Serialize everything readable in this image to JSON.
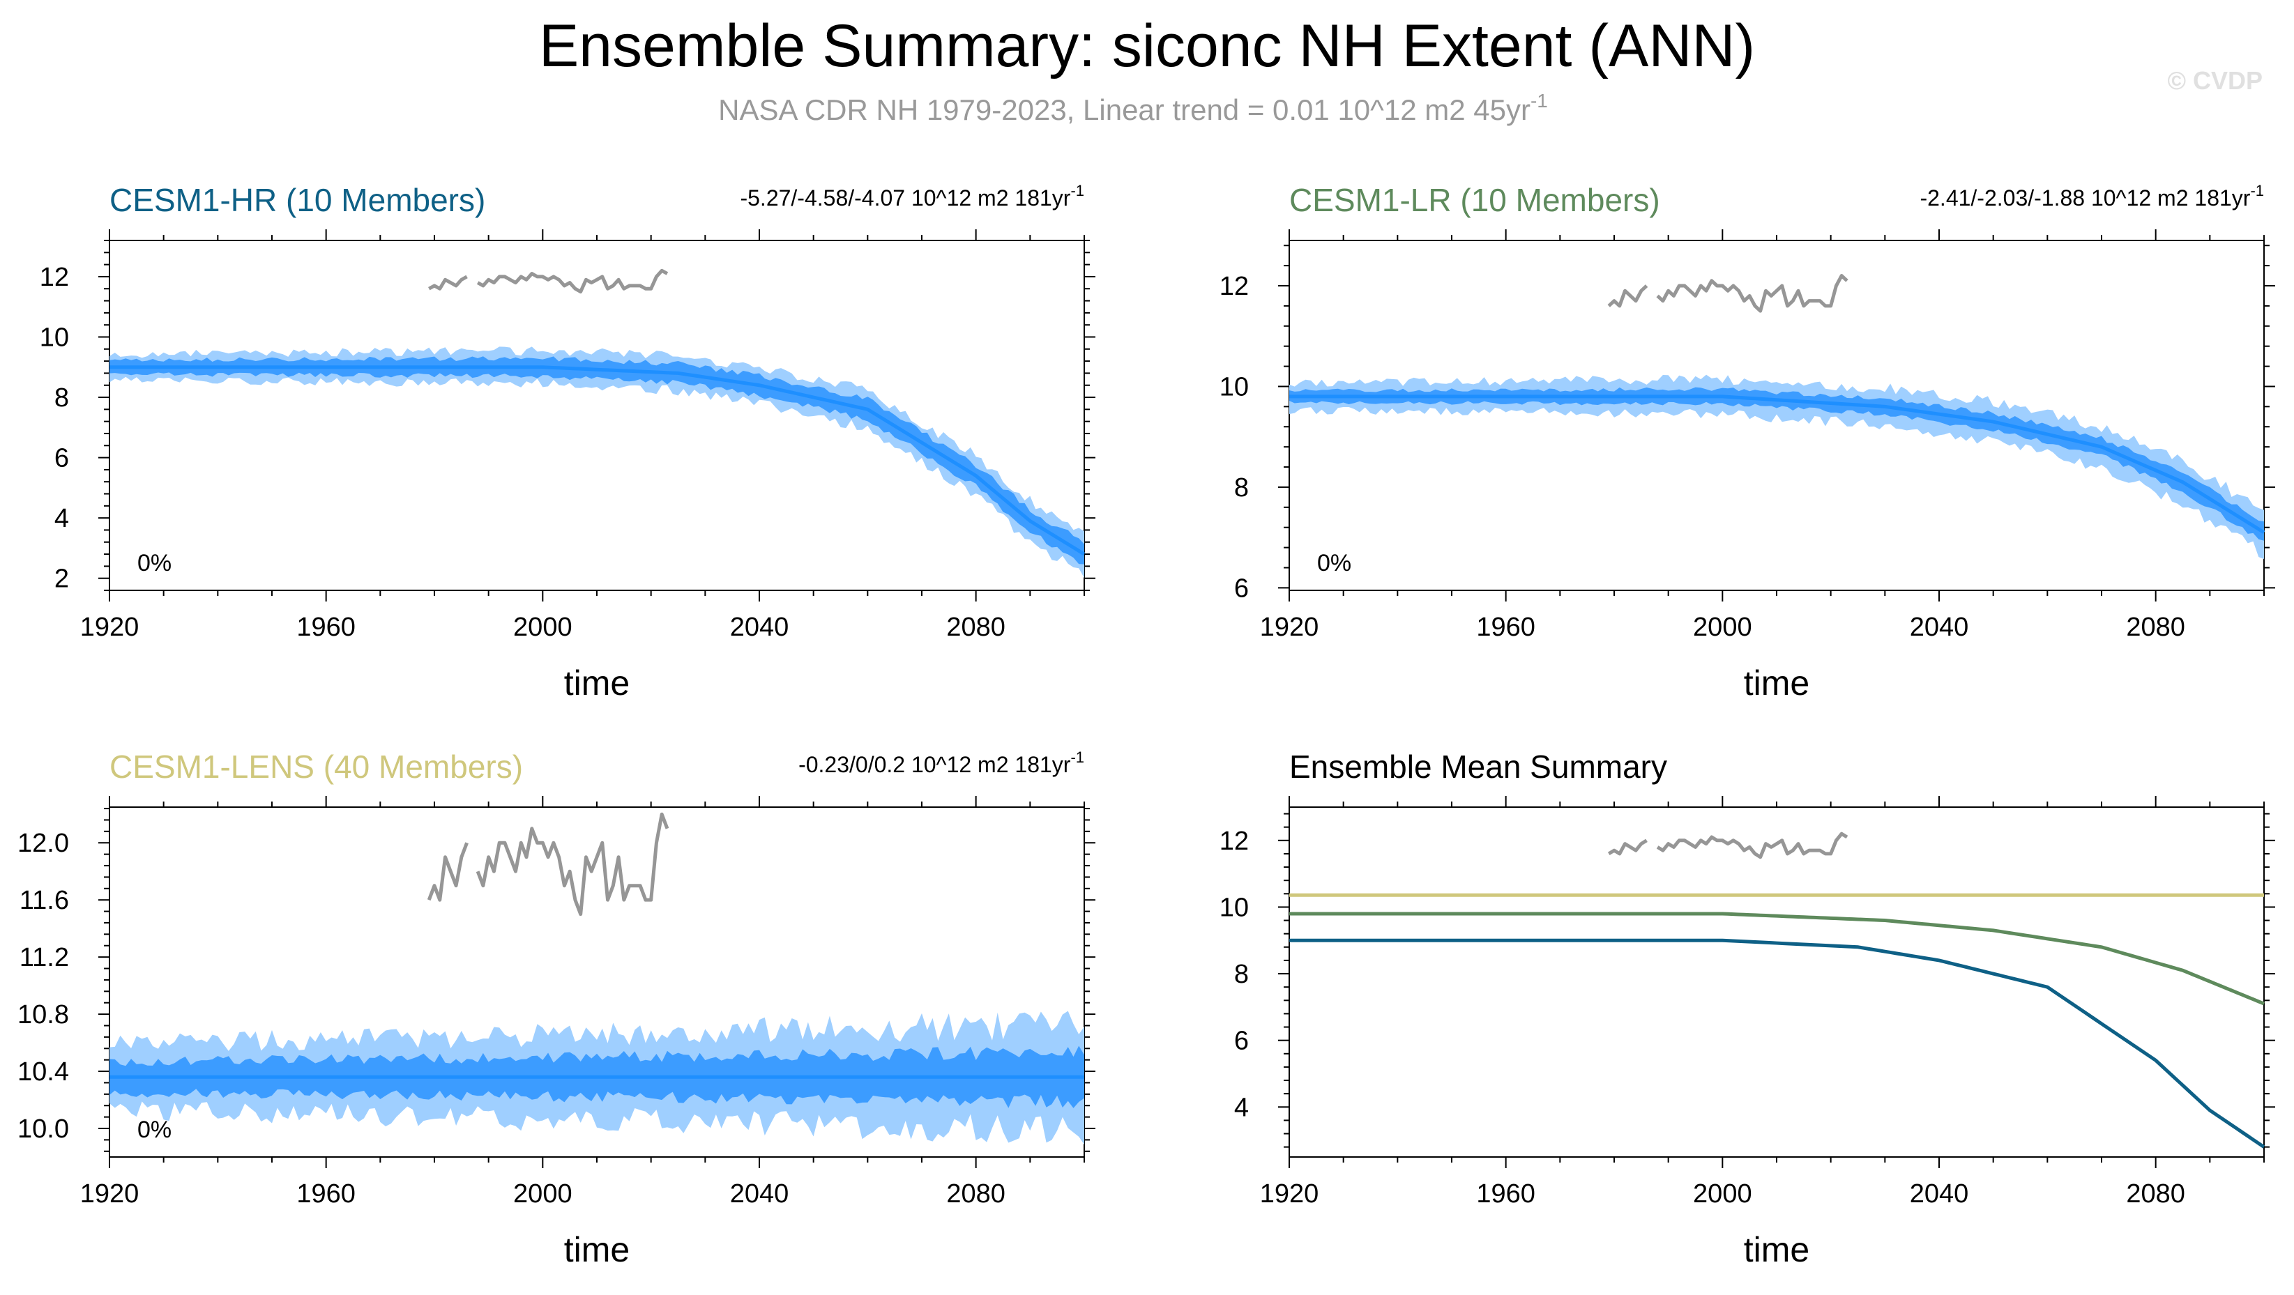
{
  "figure": {
    "title": "Ensemble Summary: siconc NH Extent (ANN)",
    "subtitle": "NASA CDR NH 1979-2023, Linear trend = 0.01 10^12 m2 45yr",
    "subtitle_superscript": "-1",
    "watermark": "© CVDP"
  },
  "colors": {
    "hr": "#0e6086",
    "lr": "#5e8a5c",
    "lens": "#cfc77c",
    "obs": "#969696",
    "band_outer": "#9fcfff",
    "band_inner": "#3c9cff",
    "mean_line": "#1e8fff",
    "axis": "#000000"
  },
  "chart_data": [
    {
      "type": "line",
      "name": "CESM1-HR (10 Members)",
      "title": "CESM1-HR (10 Members)",
      "trend_label": "-5.27/-4.58/-4.07 10^12 m2 181yr",
      "trend_superscript": "-1",
      "percent_label": "0%",
      "xlabel": "time",
      "xlim": [
        1920,
        2100
      ],
      "ylim": [
        1.6,
        13.2
      ],
      "xticks": [
        1920,
        1960,
        2000,
        2040,
        2080
      ],
      "xtick_labels": [
        "1920",
        "1960",
        "2000",
        "2040",
        "2080"
      ],
      "yticks": [
        2,
        4,
        6,
        8,
        10,
        12
      ],
      "ytick_labels": [
        "2",
        "4",
        "6",
        "8",
        "10",
        "12"
      ],
      "mean_keypoints": [
        [
          1920,
          9.0
        ],
        [
          1960,
          9.0
        ],
        [
          2000,
          9.0
        ],
        [
          2025,
          8.8
        ],
        [
          2040,
          8.4
        ],
        [
          2060,
          7.6
        ],
        [
          2080,
          5.4
        ],
        [
          2090,
          3.9
        ],
        [
          2100,
          2.8
        ]
      ],
      "inner_spread": 0.3,
      "outer_spread": 0.55,
      "obs_years": [
        1979,
        1980,
        1981,
        1982,
        1983,
        1984,
        1985,
        1986,
        1987,
        1988,
        1989,
        1990,
        1991,
        1992,
        1993,
        1994,
        1995,
        1996,
        1997,
        1998,
        1999,
        2000,
        2001,
        2002,
        2003,
        2004,
        2005,
        2006,
        2007,
        2008,
        2009,
        2010,
        2011,
        2012,
        2013,
        2014,
        2015,
        2016,
        2017,
        2018,
        2019,
        2020,
        2021,
        2022,
        2023
      ],
      "obs_values": [
        11.6,
        11.7,
        11.6,
        11.9,
        11.8,
        11.7,
        11.9,
        12.0,
        null,
        11.8,
        11.7,
        11.9,
        11.8,
        12.0,
        12.0,
        11.9,
        11.8,
        12.0,
        11.9,
        12.1,
        12.0,
        12.0,
        11.9,
        12.0,
        11.9,
        11.7,
        11.8,
        11.6,
        11.5,
        11.9,
        11.8,
        11.9,
        12.0,
        11.6,
        11.7,
        11.9,
        11.6,
        11.7,
        11.7,
        11.7,
        11.6,
        11.6,
        12.0,
        12.2,
        12.1
      ]
    },
    {
      "type": "line",
      "name": "CESM1-LR (10 Members)",
      "title": "CESM1-LR (10 Members)",
      "trend_label": "-2.41/-2.03/-1.88 10^12 m2 181yr",
      "trend_superscript": "-1",
      "percent_label": "0%",
      "xlabel": "time",
      "xlim": [
        1920,
        2100
      ],
      "ylim": [
        5.95,
        12.9
      ],
      "xticks": [
        1920,
        1960,
        2000,
        2040,
        2080
      ],
      "xtick_labels": [
        "1920",
        "1960",
        "2000",
        "2040",
        "2080"
      ],
      "yticks": [
        6,
        8,
        10,
        12
      ],
      "ytick_labels": [
        "6",
        "8",
        "10",
        "12"
      ],
      "mean_keypoints": [
        [
          1920,
          9.8
        ],
        [
          2000,
          9.8
        ],
        [
          2030,
          9.6
        ],
        [
          2050,
          9.3
        ],
        [
          2070,
          8.8
        ],
        [
          2085,
          8.1
        ],
        [
          2100,
          7.1
        ]
      ],
      "inner_spread": 0.15,
      "outer_spread": 0.35,
      "obs_years": [
        1979,
        1980,
        1981,
        1982,
        1983,
        1984,
        1985,
        1986,
        1987,
        1988,
        1989,
        1990,
        1991,
        1992,
        1993,
        1994,
        1995,
        1996,
        1997,
        1998,
        1999,
        2000,
        2001,
        2002,
        2003,
        2004,
        2005,
        2006,
        2007,
        2008,
        2009,
        2010,
        2011,
        2012,
        2013,
        2014,
        2015,
        2016,
        2017,
        2018,
        2019,
        2020,
        2021,
        2022,
        2023
      ],
      "obs_values": [
        11.6,
        11.7,
        11.6,
        11.9,
        11.8,
        11.7,
        11.9,
        12.0,
        null,
        11.8,
        11.7,
        11.9,
        11.8,
        12.0,
        12.0,
        11.9,
        11.8,
        12.0,
        11.9,
        12.1,
        12.0,
        12.0,
        11.9,
        12.0,
        11.9,
        11.7,
        11.8,
        11.6,
        11.5,
        11.9,
        11.8,
        11.9,
        12.0,
        11.6,
        11.7,
        11.9,
        11.6,
        11.7,
        11.7,
        11.7,
        11.6,
        11.6,
        12.0,
        12.2,
        12.1
      ]
    },
    {
      "type": "line",
      "name": "CESM1-LENS (40 Members)",
      "title": "CESM1-LENS (40 Members)",
      "trend_label": "-0.23/0/0.2 10^12 m2 181yr",
      "trend_superscript": "-1",
      "percent_label": "0%",
      "xlabel": "time",
      "xlim": [
        1920,
        2100
      ],
      "ylim": [
        9.8,
        12.25
      ],
      "xticks": [
        1920,
        1960,
        2000,
        2040,
        2080
      ],
      "xtick_labels": [
        "1920",
        "1960",
        "2000",
        "2040",
        "2080"
      ],
      "yticks": [
        10.0,
        10.4,
        10.8,
        11.2,
        11.6,
        12.0
      ],
      "ytick_labels": [
        "10.0",
        "10.4",
        "10.8",
        "11.2",
        "11.6",
        "12.0"
      ],
      "mean_keypoints": [
        [
          1920,
          10.36
        ],
        [
          2100,
          10.36
        ]
      ],
      "inner_spread": 0.14,
      "outer_spread": 0.3,
      "obs_years": [
        1979,
        1980,
        1981,
        1982,
        1983,
        1984,
        1985,
        1986,
        1987,
        1988,
        1989,
        1990,
        1991,
        1992,
        1993,
        1994,
        1995,
        1996,
        1997,
        1998,
        1999,
        2000,
        2001,
        2002,
        2003,
        2004,
        2005,
        2006,
        2007,
        2008,
        2009,
        2010,
        2011,
        2012,
        2013,
        2014,
        2015,
        2016,
        2017,
        2018,
        2019,
        2020,
        2021,
        2022,
        2023
      ],
      "obs_values": [
        11.6,
        11.7,
        11.6,
        11.9,
        11.8,
        11.7,
        11.9,
        12.0,
        null,
        11.8,
        11.7,
        11.9,
        11.8,
        12.0,
        12.0,
        11.9,
        11.8,
        12.0,
        11.9,
        12.1,
        12.0,
        12.0,
        11.9,
        12.0,
        11.9,
        11.7,
        11.8,
        11.6,
        11.5,
        11.9,
        11.8,
        11.9,
        12.0,
        11.6,
        11.7,
        11.9,
        11.6,
        11.7,
        11.7,
        11.7,
        11.6,
        11.6,
        12.0,
        12.2,
        12.1
      ]
    },
    {
      "type": "line",
      "name": "Ensemble Mean Summary",
      "title": "Ensemble Mean Summary",
      "xlabel": "time",
      "xlim": [
        1920,
        2100
      ],
      "ylim": [
        2.5,
        13.0
      ],
      "xticks": [
        1920,
        1960,
        2000,
        2040,
        2080
      ],
      "xtick_labels": [
        "1920",
        "1960",
        "2000",
        "2040",
        "2080"
      ],
      "yticks": [
        4,
        6,
        8,
        10,
        12
      ],
      "ytick_labels": [
        "4",
        "6",
        "8",
        "10",
        "12"
      ],
      "series": [
        {
          "name": "CESM1-LENS",
          "color_key": "lens",
          "keypoints": [
            [
              1920,
              10.36
            ],
            [
              2100,
              10.36
            ]
          ]
        },
        {
          "name": "CESM1-LR",
          "color_key": "lr",
          "keypoints": [
            [
              1920,
              9.8
            ],
            [
              2000,
              9.8
            ],
            [
              2030,
              9.6
            ],
            [
              2050,
              9.3
            ],
            [
              2070,
              8.8
            ],
            [
              2085,
              8.1
            ],
            [
              2100,
              7.1
            ]
          ]
        },
        {
          "name": "CESM1-HR",
          "color_key": "hr",
          "keypoints": [
            [
              1920,
              9.0
            ],
            [
              1960,
              9.0
            ],
            [
              2000,
              9.0
            ],
            [
              2025,
              8.8
            ],
            [
              2040,
              8.4
            ],
            [
              2060,
              7.6
            ],
            [
              2080,
              5.4
            ],
            [
              2090,
              3.9
            ],
            [
              2100,
              2.8
            ]
          ]
        }
      ],
      "obs_years": [
        1979,
        1980,
        1981,
        1982,
        1983,
        1984,
        1985,
        1986,
        1987,
        1988,
        1989,
        1990,
        1991,
        1992,
        1993,
        1994,
        1995,
        1996,
        1997,
        1998,
        1999,
        2000,
        2001,
        2002,
        2003,
        2004,
        2005,
        2006,
        2007,
        2008,
        2009,
        2010,
        2011,
        2012,
        2013,
        2014,
        2015,
        2016,
        2017,
        2018,
        2019,
        2020,
        2021,
        2022,
        2023
      ],
      "obs_values": [
        11.6,
        11.7,
        11.6,
        11.9,
        11.8,
        11.7,
        11.9,
        12.0,
        null,
        11.8,
        11.7,
        11.9,
        11.8,
        12.0,
        12.0,
        11.9,
        11.8,
        12.0,
        11.9,
        12.1,
        12.0,
        12.0,
        11.9,
        12.0,
        11.9,
        11.7,
        11.8,
        11.6,
        11.5,
        11.9,
        11.8,
        11.9,
        12.0,
        11.6,
        11.7,
        11.9,
        11.6,
        11.7,
        11.7,
        11.7,
        11.6,
        11.6,
        12.0,
        12.2,
        12.1
      ]
    }
  ]
}
